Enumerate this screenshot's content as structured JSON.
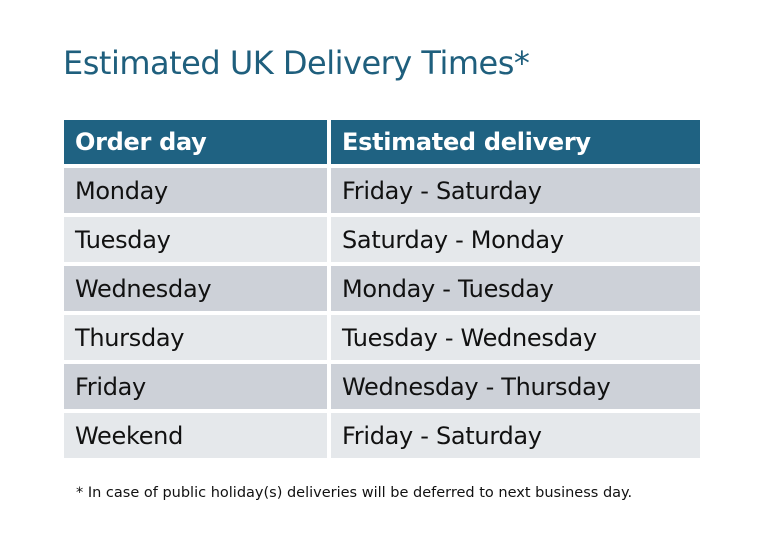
{
  "title": "Estimated UK Delivery Times*",
  "table": {
    "headers": [
      "Order day",
      "Estimated delivery"
    ],
    "rows": [
      [
        "Monday",
        "Friday - Saturday"
      ],
      [
        "Tuesday",
        "Saturday - Monday"
      ],
      [
        "Wednesday",
        "Monday - Tuesday"
      ],
      [
        "Thursday",
        "Tuesday - Wednesday"
      ],
      [
        "Friday",
        "Wednesday - Thursday"
      ],
      [
        "Weekend",
        "Friday - Saturday"
      ]
    ]
  },
  "footnote": "* In case of public holiday(s) deliveries will be deferred to next business day.",
  "colors": {
    "header": "#1f6282",
    "title": "#1f5f7d",
    "row_odd": "#cdd1d8",
    "row_even": "#e5e8eb"
  }
}
